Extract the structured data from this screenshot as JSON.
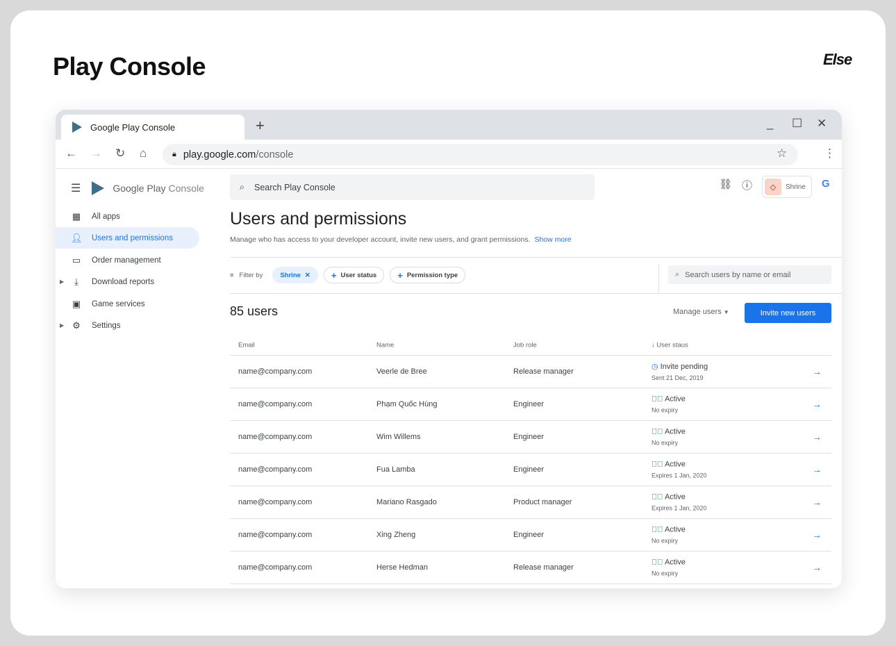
{
  "page": {
    "title": "Play Console",
    "logo": "Else"
  },
  "browser": {
    "tab_title": "Google Play Console",
    "url_host": "play.google.com",
    "url_path": "/console"
  },
  "app": {
    "brand_google": "Google Play",
    "brand_console": " Console",
    "search_placeholder": "Search Play Console",
    "account": "Shrine"
  },
  "sidebar": {
    "items": [
      {
        "label": "All apps",
        "icon": "grid-icon"
      },
      {
        "label": "Users and permissions",
        "icon": "users-list-icon",
        "active": true
      },
      {
        "label": "Order management",
        "icon": "card-icon"
      },
      {
        "label": "Download reports",
        "icon": "download-icon",
        "expandable": true
      },
      {
        "label": "Game services",
        "icon": "gamepad-icon"
      },
      {
        "label": "Settings",
        "icon": "gear-icon",
        "expandable": true
      }
    ]
  },
  "main": {
    "title": "Users and permissions",
    "description": "Manage who has access to your developer account, invite new users, and grant permissions.",
    "show_more": "Show more",
    "filter_label": "Filter by",
    "chips": {
      "shrine": "Shrine",
      "user_status": "User status",
      "permission_type": "Permission type"
    },
    "user_search_placeholder": "Search users by name or email",
    "count": "85 users",
    "manage_users": "Manage users",
    "invite": "Invite new users"
  },
  "table": {
    "headers": {
      "email": "Email",
      "name": "Name",
      "role": "Job role",
      "status": "User staus"
    },
    "rows": [
      {
        "email": "name@company.com",
        "name": "Veerle de Bree",
        "role": "Release manager",
        "status": "Invite pending",
        "sub": "Sent 21 Dec, 2019",
        "pending": true
      },
      {
        "email": "name@company.com",
        "name": "Phạm Quốc Hùng",
        "role": "Engineer",
        "status": "Active",
        "sub": "No expiry"
      },
      {
        "email": "name@company.com",
        "name": "Wim Willems",
        "role": "Engineer",
        "status": "Active",
        "sub": "No expiry"
      },
      {
        "email": "name@company.com",
        "name": "Fua Lamba",
        "role": "Engineer",
        "status": "Active",
        "sub": "Expires 1 Jan, 2020"
      },
      {
        "email": "name@company.com",
        "name": "Mariano Rasgado",
        "role": "Product manager",
        "status": "Active",
        "sub": "Expires 1 Jan, 2020"
      },
      {
        "email": "name@company.com",
        "name": "Xing Zheng",
        "role": "Engineer",
        "status": "Active",
        "sub": "No expiry"
      },
      {
        "email": "name@company.com",
        "name": "Herse Hedman",
        "role": "Release manager",
        "status": "Active",
        "sub": "No expiry"
      }
    ]
  },
  "colors": {
    "accent": "#1a73e8",
    "active": "#188038",
    "pending": "#1967d2"
  }
}
